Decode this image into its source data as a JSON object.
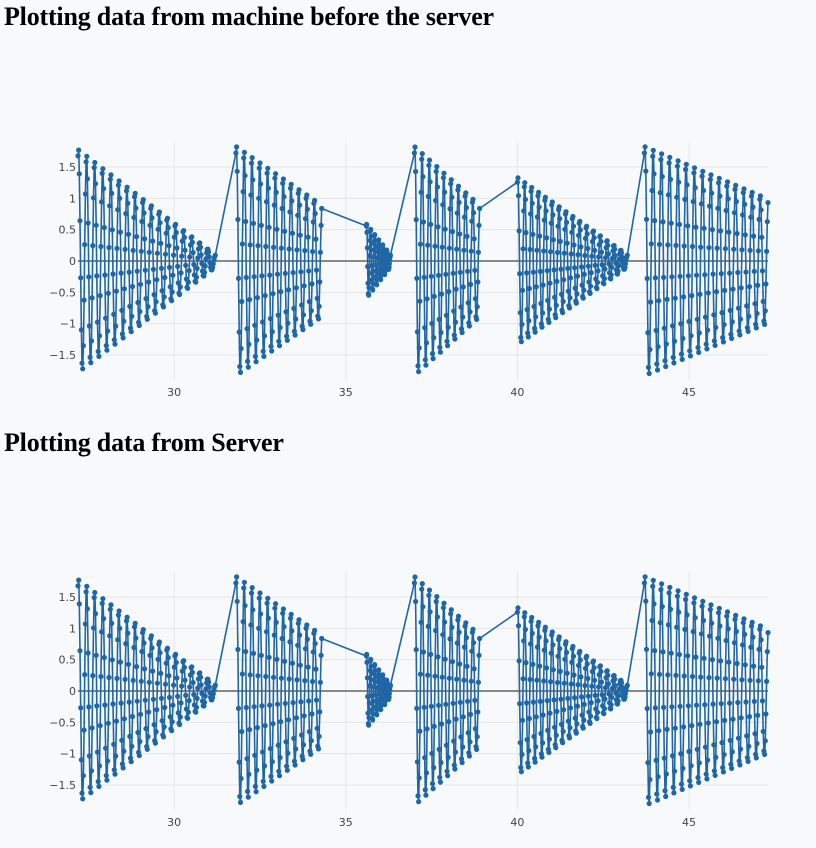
{
  "page": {
    "section_1_title": "Plotting data from machine before the server",
    "section_2_title": "Plotting data from Server"
  },
  "colors": {
    "series": "#1f66a6",
    "zero_line": "#444444",
    "grid": "#e6e6e6"
  },
  "chart_data": [
    {
      "type": "line",
      "mode": "lines+markers",
      "xlim": [
        27.2,
        47.3
      ],
      "ylim": [
        -1.9,
        1.9
      ],
      "x_ticks": [
        30,
        35,
        40,
        45
      ],
      "x_tick_labels": [
        "30",
        "35",
        "40",
        "45"
      ],
      "y_ticks": [
        1.5,
        1,
        0.5,
        0,
        -0.5,
        -1,
        -1.5
      ],
      "y_tick_labels": [
        "1.5",
        "1",
        "0.5",
        "0",
        "−0.5",
        "−1",
        "−1.5"
      ],
      "grid": true,
      "zero_line": true,
      "segments": [
        {
          "x": [
            27.2,
            31.2
          ],
          "amp": [
            1.8,
            0.1
          ],
          "cycles": 17
        },
        {
          "x": [
            31.8,
            34.3
          ],
          "amp": [
            1.85,
            0.9
          ],
          "cycles": 11
        },
        {
          "x": [
            35.6,
            36.3
          ],
          "amp": [
            0.6,
            0.1
          ],
          "cycles": 6
        },
        {
          "x": [
            37.0,
            38.9
          ],
          "amp": [
            1.85,
            0.9
          ],
          "cycles": 9
        },
        {
          "x": [
            40.0,
            43.2
          ],
          "amp": [
            1.35,
            0.1
          ],
          "cycles": 16
        },
        {
          "x": [
            43.7,
            47.3
          ],
          "amp": [
            1.85,
            1.0
          ],
          "cycles": 15
        }
      ]
    },
    {
      "type": "line",
      "mode": "lines+markers",
      "xlim": [
        27.2,
        47.3
      ],
      "ylim": [
        -1.9,
        1.9
      ],
      "x_ticks": [
        30,
        35,
        40,
        45
      ],
      "x_tick_labels": [
        "30",
        "35",
        "40",
        "45"
      ],
      "y_ticks": [
        1.5,
        1,
        0.5,
        0,
        -0.5,
        -1,
        -1.5
      ],
      "y_tick_labels": [
        "1.5",
        "1",
        "0.5",
        "0",
        "−0.5",
        "−1",
        "−1.5"
      ],
      "grid": true,
      "zero_line": true,
      "segments": [
        {
          "x": [
            27.2,
            31.2
          ],
          "amp": [
            1.8,
            0.1
          ],
          "cycles": 17
        },
        {
          "x": [
            31.8,
            34.3
          ],
          "amp": [
            1.85,
            0.9
          ],
          "cycles": 11
        },
        {
          "x": [
            35.6,
            36.3
          ],
          "amp": [
            0.6,
            0.1
          ],
          "cycles": 6
        },
        {
          "x": [
            37.0,
            38.9
          ],
          "amp": [
            1.85,
            0.9
          ],
          "cycles": 9
        },
        {
          "x": [
            40.0,
            43.2
          ],
          "amp": [
            1.35,
            0.1
          ],
          "cycles": 16
        },
        {
          "x": [
            43.7,
            47.3
          ],
          "amp": [
            1.85,
            1.0
          ],
          "cycles": 15
        }
      ]
    }
  ]
}
